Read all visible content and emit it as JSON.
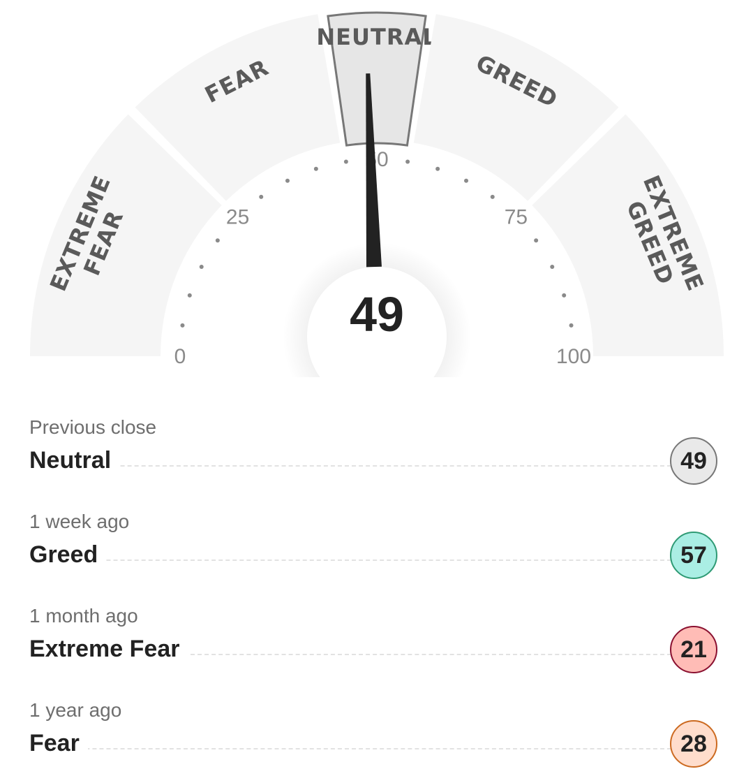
{
  "gauge": {
    "value": 49,
    "value_label": "49",
    "selected_segment": "NEUTRAL",
    "segments": [
      {
        "lines": [
          "EXTREME",
          "FEAR"
        ],
        "from": 0,
        "to": 25
      },
      {
        "lines": [
          "FEAR"
        ],
        "from": 25,
        "to": 45
      },
      {
        "lines": [
          "NEUTRAL"
        ],
        "from": 45,
        "to": 55
      },
      {
        "lines": [
          "GREED"
        ],
        "from": 55,
        "to": 75
      },
      {
        "lines": [
          "EXTREME",
          "GREED"
        ],
        "from": 75,
        "to": 100
      }
    ],
    "ticks": [
      "0",
      "25",
      "50",
      "75",
      "100"
    ],
    "colors": {
      "segment": "#f5f5f5",
      "selected": "#e6e6e6",
      "selected_border": "#777777",
      "needle": "#222222"
    }
  },
  "history": [
    {
      "when": "Previous close",
      "rating": "Neutral",
      "value": "49",
      "bg": "#e9e9e9",
      "border": "#777777"
    },
    {
      "when": "1 week ago",
      "rating": "Greed",
      "value": "57",
      "bg": "#aaeee4",
      "border": "#2e9a74"
    },
    {
      "when": "1 month ago",
      "rating": "Extreme Fear",
      "value": "21",
      "bg": "#ffbcb6",
      "border": "#8a1030"
    },
    {
      "when": "1 year ago",
      "rating": "Fear",
      "value": "28",
      "bg": "#ffddcc",
      "border": "#cc6a20"
    }
  ]
}
